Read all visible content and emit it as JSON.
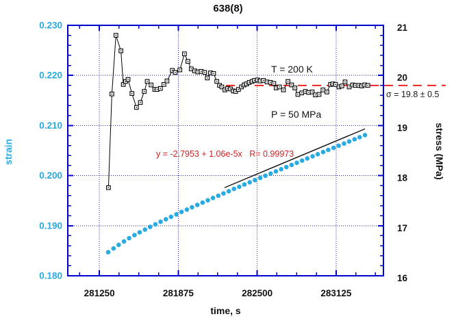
{
  "window": {
    "title": "638(8)"
  },
  "annotations": {
    "temperature": "T = 200 K",
    "pressure": "P = 50 MPa",
    "sigma": "σ = 19.8 ± 0.5",
    "fit_equation": "y = -2.7953 + 1.06e-5x   R= 0.99973"
  },
  "colors": {
    "frame": "#0000cc",
    "grid": "#1a1aad",
    "strain_accent": "#29abe2",
    "stress_series": "#000000",
    "reference_line": "#ee2222",
    "equation_text": "#cc2222",
    "tick_label": "#111111"
  },
  "chart_data": {
    "type": "line",
    "title": "638(8)",
    "axes": {
      "x": {
        "title": "time, s",
        "min": 281000,
        "max": 283500,
        "major_ticks": [
          {
            "v": 281250,
            "label": "281250"
          },
          {
            "v": 281875,
            "label": "281875"
          },
          {
            "v": 282500,
            "label": "282500"
          },
          {
            "v": 283125,
            "label": "283125"
          }
        ],
        "minor_start": 281093.75,
        "minor_step": 156.25,
        "minor_count": 16,
        "grid": "dotted"
      },
      "left": {
        "title": "strain",
        "min": 0.18,
        "max": 0.23,
        "major_ticks": [
          {
            "v": 0.23,
            "label": "0.230"
          },
          {
            "v": 0.22,
            "label": "0.220"
          },
          {
            "v": 0.21,
            "label": "0.210"
          },
          {
            "v": 0.2,
            "label": "0.200"
          },
          {
            "v": 0.19,
            "label": "0.190"
          },
          {
            "v": 0.18,
            "label": "0.180"
          }
        ],
        "minor_step": 0.002,
        "grid_values": [
          0.19,
          0.2,
          0.21,
          0.22
        ]
      },
      "right": {
        "title": "stress (MPa)",
        "min": 16,
        "max": 21,
        "major_ticks": [
          {
            "v": 21,
            "label": "21"
          },
          {
            "v": 20,
            "label": "20"
          },
          {
            "v": 19,
            "label": "19"
          },
          {
            "v": 18,
            "label": "18"
          },
          {
            "v": 17,
            "label": "17"
          },
          {
            "v": 16,
            "label": "16"
          }
        ],
        "minor_step": 0.2
      }
    },
    "series": [
      {
        "name": "stress",
        "axis": "right",
        "marker": "open-square",
        "line": true,
        "color": "#000000",
        "points": [
          [
            281322,
            17.76
          ],
          [
            281349,
            19.63
          ],
          [
            281381,
            20.8
          ],
          [
            281421,
            20.49
          ],
          [
            281440,
            19.82
          ],
          [
            281458,
            19.88
          ],
          [
            281477,
            19.92
          ],
          [
            281508,
            19.64
          ],
          [
            281544,
            19.36
          ],
          [
            281575,
            19.46
          ],
          [
            281606,
            19.68
          ],
          [
            281629,
            19.88
          ],
          [
            281660,
            19.81
          ],
          [
            281689,
            19.72
          ],
          [
            281707,
            19.72
          ],
          [
            281734,
            19.74
          ],
          [
            281761,
            19.82
          ],
          [
            281786,
            19.89
          ],
          [
            281828,
            20.1
          ],
          [
            281851,
            20.06
          ],
          [
            281888,
            20.11
          ],
          [
            281924,
            20.43
          ],
          [
            281951,
            20.28
          ],
          [
            281978,
            20.13
          ],
          [
            282005,
            20.09
          ],
          [
            282030,
            20.07
          ],
          [
            282057,
            20.08
          ],
          [
            282084,
            20.06
          ],
          [
            282105,
            19.95
          ],
          [
            282130,
            20.05
          ],
          [
            282155,
            20.04
          ],
          [
            282180,
            19.88
          ],
          [
            282202,
            19.8
          ],
          [
            282220,
            19.77
          ],
          [
            282244,
            19.71
          ],
          [
            282267,
            19.74
          ],
          [
            282289,
            19.73
          ],
          [
            282311,
            19.69
          ],
          [
            282329,
            19.68
          ],
          [
            282352,
            19.72
          ],
          [
            282376,
            19.77
          ],
          [
            282397,
            19.81
          ],
          [
            282415,
            19.83
          ],
          [
            282437,
            19.86
          ],
          [
            282460,
            19.88
          ],
          [
            282479,
            19.9
          ],
          [
            282502,
            19.91
          ],
          [
            282524,
            19.89
          ],
          [
            282550,
            19.9
          ],
          [
            282578,
            19.87
          ],
          [
            282605,
            19.86
          ],
          [
            282632,
            19.84
          ],
          [
            282650,
            19.75
          ],
          [
            282677,
            19.77
          ],
          [
            282708,
            19.71
          ],
          [
            282744,
            19.88
          ],
          [
            282773,
            19.81
          ],
          [
            282799,
            19.75
          ],
          [
            282822,
            19.62
          ],
          [
            282853,
            19.65
          ],
          [
            282882,
            19.68
          ],
          [
            282907,
            19.66
          ],
          [
            282936,
            19.67
          ],
          [
            282961,
            19.61
          ],
          [
            282990,
            19.62
          ],
          [
            283021,
            19.71
          ],
          [
            283052,
            19.67
          ],
          [
            283081,
            19.82
          ],
          [
            283099,
            19.83
          ],
          [
            283121,
            19.82
          ],
          [
            283148,
            19.77
          ],
          [
            283171,
            19.79
          ],
          [
            283196,
            19.87
          ],
          [
            283229,
            19.77
          ],
          [
            283256,
            19.81
          ],
          [
            283279,
            19.8
          ],
          [
            283305,
            19.8
          ],
          [
            283328,
            19.79
          ],
          [
            283352,
            19.81
          ],
          [
            283377,
            19.8
          ]
        ]
      },
      {
        "name": "strain",
        "axis": "left",
        "marker": "dot",
        "line": false,
        "color": "#29abe2",
        "points": [
          [
            281320,
            0.1847
          ],
          [
            281362,
            0.18545
          ],
          [
            281403,
            0.18617
          ],
          [
            281445,
            0.18686
          ],
          [
            281486,
            0.18752
          ],
          [
            281528,
            0.18812
          ],
          [
            281569,
            0.18868
          ],
          [
            281611,
            0.18922
          ],
          [
            281652,
            0.18975
          ],
          [
            281694,
            0.19027
          ],
          [
            281735,
            0.19078
          ],
          [
            281777,
            0.19128
          ],
          [
            281818,
            0.19177
          ],
          [
            281860,
            0.19226
          ],
          [
            281901,
            0.19274
          ],
          [
            281943,
            0.19321
          ],
          [
            281984,
            0.19368
          ],
          [
            282026,
            0.19415
          ],
          [
            282067,
            0.19461
          ],
          [
            282109,
            0.19507
          ],
          [
            282150,
            0.19553
          ],
          [
            282192,
            0.19598
          ],
          [
            282233,
            0.19644
          ],
          [
            282275,
            0.19688
          ],
          [
            282316,
            0.19733
          ],
          [
            282358,
            0.19777
          ],
          [
            282399,
            0.19822
          ],
          [
            282441,
            0.19866
          ],
          [
            282482,
            0.1991
          ],
          [
            282524,
            0.19953
          ],
          [
            282565,
            0.19997
          ],
          [
            282607,
            0.2004
          ],
          [
            282648,
            0.20084
          ],
          [
            282690,
            0.20127
          ],
          [
            282731,
            0.2017
          ],
          [
            282773,
            0.20213
          ],
          [
            282814,
            0.20256
          ],
          [
            282856,
            0.20299
          ],
          [
            282897,
            0.20342
          ],
          [
            282939,
            0.20385
          ],
          [
            282980,
            0.20427
          ],
          [
            283022,
            0.2047
          ],
          [
            283063,
            0.20512
          ],
          [
            283105,
            0.20555
          ],
          [
            283146,
            0.20597
          ],
          [
            283188,
            0.2064
          ],
          [
            283229,
            0.20682
          ],
          [
            283271,
            0.20725
          ],
          [
            283312,
            0.20767
          ],
          [
            283354,
            0.20809
          ]
        ]
      }
    ],
    "fit_line": {
      "axis": "left",
      "x1": 282242,
      "y1": 0.1976,
      "x2": 283354,
      "y2": 0.20933,
      "color": "#000000"
    },
    "reference_line": {
      "axis": "right",
      "value": 19.8,
      "x1": 282253,
      "x2": 283993,
      "style": "dashed",
      "color": "#ee2222"
    },
    "legend": null
  }
}
